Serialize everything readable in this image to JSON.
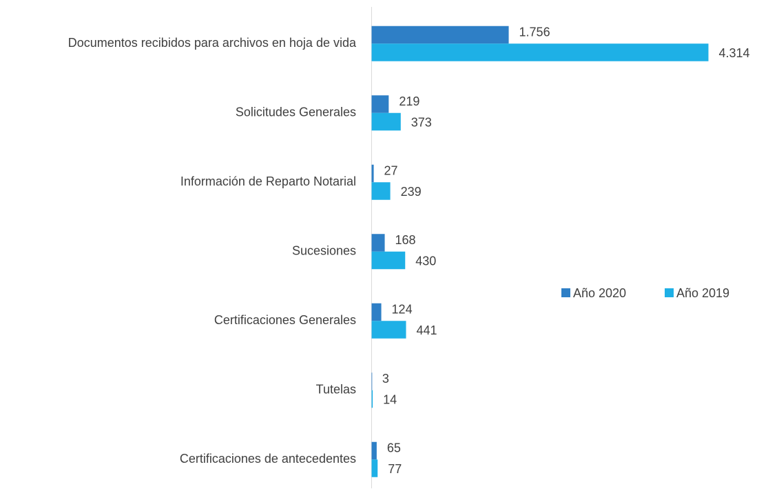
{
  "chart_data": {
    "type": "hbar",
    "categories": [
      "Documentos recibidos para archivos en hoja de vida",
      "Solicitudes Generales",
      "Información de Reparto Notarial",
      "Sucesiones",
      "Certificaciones Generales",
      "Tutelas",
      "Certificaciones de antecedentes"
    ],
    "series": [
      {
        "name": "Año 2020",
        "color": "#2e7fc6",
        "values": [
          1756,
          219,
          27,
          168,
          124,
          3,
          65
        ],
        "value_labels": [
          "1.756",
          "219",
          "27",
          "168",
          "124",
          "3",
          "65"
        ]
      },
      {
        "name": "Año 2019",
        "color": "#1eb0e6",
        "values": [
          4314,
          373,
          239,
          430,
          441,
          14,
          77
        ],
        "value_labels": [
          "4.314",
          "373",
          "239",
          "430",
          "441",
          "14",
          "77"
        ]
      }
    ]
  }
}
